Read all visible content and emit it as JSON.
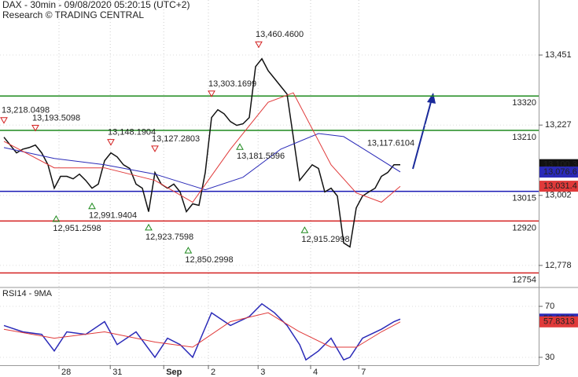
{
  "chart_data": {
    "type": "line",
    "title": "DAX - 30min - 09/08/2020 05:20:15 (UTC+2)",
    "subtitle": "Research © TRADING CENTRAL",
    "xlim": [
      -0.625,
      85
    ],
    "xticks": [
      {
        "value": 8.75,
        "label": "28"
      },
      {
        "value": 16.9,
        "label": "31"
      },
      {
        "value": 25.4,
        "label": "Sep"
      },
      {
        "value": 32.5,
        "label": "2"
      },
      {
        "value": 40.4,
        "label": "3"
      },
      {
        "value": 48.75,
        "label": "4"
      },
      {
        "value": 56.4,
        "label": "7"
      }
    ],
    "ylim": [
      12710,
      13627
    ],
    "yticks": [
      {
        "value": 13451,
        "label": "13,451"
      },
      {
        "value": 13227,
        "label": "13,227"
      },
      {
        "value": 13002,
        "label": "13,002"
      },
      {
        "value": 12778,
        "label": "12,778"
      }
    ],
    "levels": [
      {
        "value": 13320,
        "color": "#1e8a1e"
      },
      {
        "value": 13210,
        "color": "#1e8a1e"
      },
      {
        "value": 13015,
        "color": "#1a1ab4"
      },
      {
        "value": 12920,
        "color": "#d42020"
      },
      {
        "value": 12754,
        "color": "#d42020"
      }
    ],
    "price_tags": [
      {
        "value": 13100.3,
        "label": "13,100.3",
        "color": "#111111"
      },
      {
        "value": 13076.6,
        "label": "13,076.6",
        "color": "#2a2ab8"
      },
      {
        "value": 13031.4,
        "label": "13,031.4",
        "color": "#e03a3a"
      }
    ],
    "annotations": [
      {
        "label": "13,218.0498",
        "x": 0,
        "value": 13218.0498,
        "kind": "high"
      },
      {
        "label": "13,193.5098",
        "x": 5,
        "value": 13193.5098,
        "kind": "high"
      },
      {
        "label": "13,148.1904",
        "x": 17,
        "value": 13148.1904,
        "kind": "high"
      },
      {
        "label": "13,127.2803",
        "x": 24,
        "value": 13127.2803,
        "kind": "high"
      },
      {
        "label": "13,303.1699",
        "x": 33,
        "value": 13303.1699,
        "kind": "high"
      },
      {
        "label": "13,460.4600",
        "x": 40.5,
        "value": 13460.46,
        "kind": "high"
      },
      {
        "label": "13,181.5596",
        "x": 37.5,
        "value": 13181.5596,
        "kind": "low"
      },
      {
        "label": "13,117.6104",
        "x": 62,
        "value": 13117.6104,
        "kind": "text"
      },
      {
        "label": "12,951.2598",
        "x": 8.3,
        "value": 12951.2598,
        "kind": "low"
      },
      {
        "label": "12,991.9404",
        "x": 14,
        "value": 12991.9404,
        "kind": "low"
      },
      {
        "label": "12,923.7598",
        "x": 23,
        "value": 12923.7598,
        "kind": "low"
      },
      {
        "label": "12,850.2998",
        "x": 29.3,
        "value": 12850.2998,
        "kind": "low"
      },
      {
        "label": "12,915.2998",
        "x": 47.8,
        "value": 12915.2998,
        "kind": "low"
      }
    ],
    "series": [
      {
        "color": "#111111",
        "x": [
          0,
          1,
          2,
          3,
          4,
          5,
          6,
          7,
          8,
          9,
          10,
          11,
          12,
          13,
          14,
          15,
          16,
          17,
          18,
          19,
          20,
          21,
          22,
          23,
          24,
          25,
          26,
          27,
          28,
          29,
          30,
          31,
          32,
          33,
          34,
          35,
          36,
          37,
          38,
          39,
          40,
          41,
          42,
          43,
          44,
          45,
          46,
          47,
          48,
          49,
          50,
          51,
          52,
          53,
          54,
          55,
          56,
          57,
          58,
          59,
          60,
          61,
          62,
          63
        ],
        "values": [
          13188,
          13163,
          13138,
          13150,
          13155,
          13163,
          13138,
          13100,
          13025,
          13063,
          13063,
          13055,
          13070,
          13050,
          13025,
          13038,
          13113,
          13138,
          13125,
          13100,
          13088,
          13038,
          13025,
          12950,
          13075,
          13038,
          13025,
          13038,
          13013,
          12950,
          12975,
          12970,
          13075,
          13251,
          13276,
          13263,
          13238,
          13226,
          13231,
          13251,
          13414,
          13439,
          13401,
          13376,
          13351,
          13326,
          13188,
          13050,
          13075,
          13100,
          13088,
          13013,
          13025,
          13000,
          12850,
          12837,
          12962,
          13000,
          13013,
          13025,
          13063,
          13075,
          13100,
          13100
        ]
      },
      {
        "color": "#2a2ab8",
        "x": [
          0,
          8,
          16,
          24,
          32,
          38,
          44,
          50,
          54,
          58,
          63
        ],
        "values": [
          13155,
          13120,
          13100,
          13070,
          13020,
          13060,
          13150,
          13200,
          13190,
          13140,
          13077
        ]
      },
      {
        "color": "#e03a3a",
        "x": [
          0,
          8,
          16,
          24,
          30,
          36,
          42,
          46,
          52,
          56,
          60,
          63
        ],
        "values": [
          13175,
          13090,
          13090,
          13050,
          12980,
          13150,
          13300,
          13330,
          13100,
          13010,
          12980,
          13031
        ]
      }
    ],
    "rsi": {
      "title": "RSI14 - 9MA",
      "ylim": [
        23.8,
        84.2
      ],
      "yticks": [
        70,
        30
      ],
      "series": [
        {
          "color": "#2a2ab8",
          "x": [
            0,
            3,
            6,
            8,
            10,
            13,
            16,
            18,
            21,
            24,
            26,
            28,
            30,
            33,
            36,
            39,
            41,
            43,
            45,
            47,
            48,
            50,
            52,
            54,
            55,
            57,
            60,
            62,
            63
          ],
          "values": [
            55,
            50,
            48,
            35,
            50,
            48,
            58,
            40,
            50,
            30,
            45,
            40,
            30,
            65,
            55,
            62,
            72,
            65,
            55,
            40,
            28,
            35,
            45,
            28,
            30,
            45,
            52,
            58,
            59.9753
          ]
        },
        {
          "color": "#e03a3a",
          "x": [
            0,
            8,
            16,
            24,
            30,
            36,
            42,
            47,
            52,
            56,
            60,
            63
          ],
          "values": [
            52,
            45,
            50,
            42,
            38,
            58,
            65,
            50,
            38,
            38,
            50,
            57.8313
          ]
        }
      ],
      "tags": [
        {
          "value": 59.9753,
          "label": "59.9753",
          "color": "#2a2ab8"
        },
        {
          "value": 57.8313,
          "label": "57.8313",
          "color": "#e03a3a"
        }
      ]
    }
  }
}
